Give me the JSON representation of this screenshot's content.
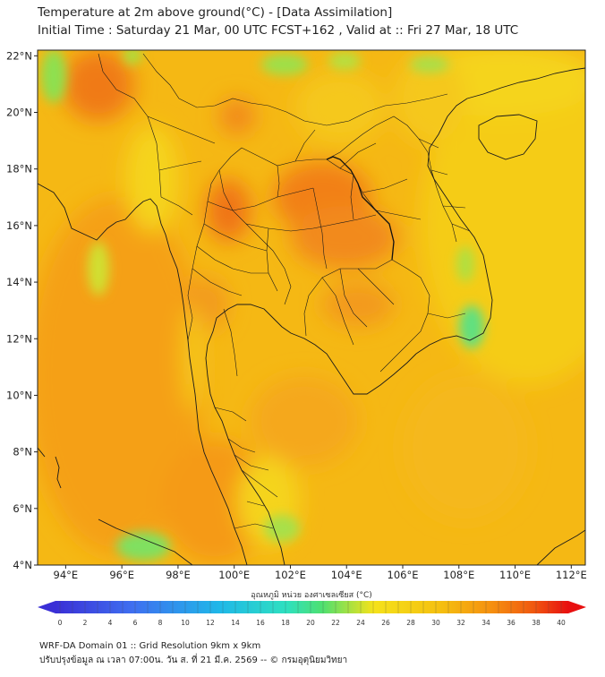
{
  "title_line1": "Temperature at 2m above ground(°C) - [Data Assimilation]",
  "title_line2": "Initial Time : Saturday 21 Mar, 00 UTC FCST+162 , Valid at :: Fri 27 Mar, 18 UTC",
  "lat_labels": [
    "22°N",
    "20°N",
    "18°N",
    "16°N",
    "14°N",
    "12°N",
    "10°N",
    "8°N",
    "6°N",
    "4°N"
  ],
  "lat_values": [
    22,
    20,
    18,
    16,
    14,
    12,
    10,
    8,
    6,
    4
  ],
  "lon_labels": [
    "94°E",
    "96°E",
    "98°E",
    "100°E",
    "102°E",
    "104°E",
    "106°E",
    "108°E",
    "110°E",
    "112°E"
  ],
  "lon_values": [
    94,
    96,
    98,
    100,
    102,
    104,
    106,
    108,
    110,
    112
  ],
  "extent": {
    "lon_min": 93.0,
    "lon_max": 112.5,
    "lat_min": 4.0,
    "lat_max": 22.2
  },
  "colorbar": {
    "label": "อุณหภูมิ หน่วย องศาเซลเซียส (°C)",
    "min": 0,
    "max": 40,
    "step": 1,
    "tick_labels": [
      "0",
      "2",
      "4",
      "6",
      "8",
      "10",
      "12",
      "14",
      "16",
      "18",
      "20",
      "22",
      "24",
      "26",
      "28",
      "30",
      "32",
      "34",
      "36",
      "38",
      "40"
    ]
  },
  "palette": {
    "cold": "#3a2fd6",
    "cool": "#1fb8e8",
    "mild": "#3ee07a",
    "warm": "#f5e21a",
    "hot": "#f5a010",
    "extreme": "#e81010"
  },
  "footer_line1": "WRF-DA Domain 01 :: Grid Resolution 9km x 9km",
  "footer_line2": "ปรับปรุงข้อมูล ณ เวลา 07:00น. วัน ส. ที่ 21 มี.ค. 2569 -- © กรมอุตุนิยมวิทยา"
}
